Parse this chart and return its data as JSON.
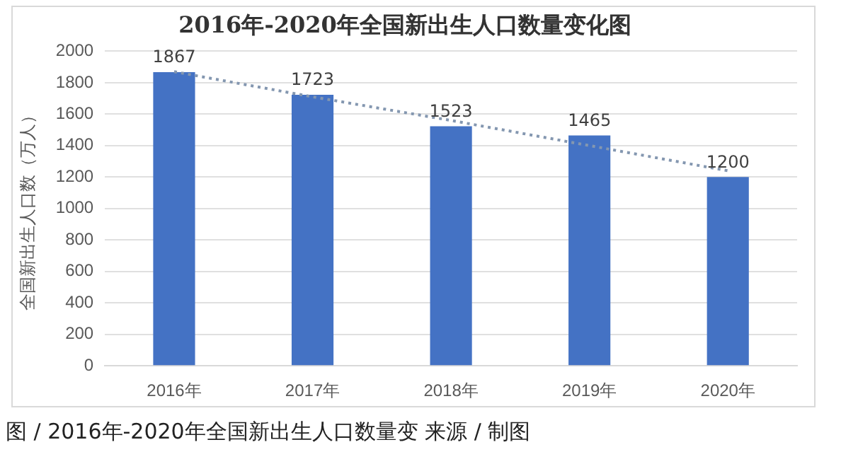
{
  "chart_data": {
    "type": "bar",
    "title": "2016年-2020年全国新出生人口数量变化图",
    "ylabel": "全国新出生人口数（万人）",
    "categories": [
      "2016年",
      "2017年",
      "2018年",
      "2019年",
      "2020年"
    ],
    "series": [
      {
        "color": "#4472c4",
        "values": [
          1867,
          1723,
          1523,
          1465,
          1200
        ],
        "value_labels": [
          "1867",
          "1723",
          "1523",
          "1465",
          "1200"
        ]
      },
      {
        "type": "line",
        "color": "#8497b0",
        "values": [
          1870,
          1710,
          1560,
          1400,
          1240
        ],
        "line_style": "dotted",
        "marker": "none"
      }
    ],
    "ylim": [
      0,
      2000
    ],
    "yticks": [
      0,
      200,
      400,
      600,
      800,
      1000,
      1200,
      1400,
      1600,
      1800,
      2000
    ],
    "grid": "y",
    "legend": false,
    "annotations": [
      "图 / 2016年-2020年全国新出生人口数量变 来源 / 制图"
    ]
  }
}
